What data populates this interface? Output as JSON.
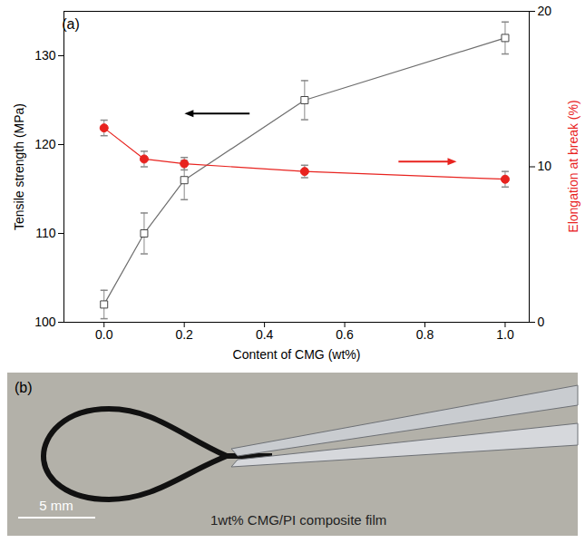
{
  "chart_data": {
    "type": "line",
    "panel_label": "(a)",
    "x_label": "Content of CMG (wt%)",
    "y_label": "Tensile strength (MPa)",
    "y2_label": "Elongation at break (%)",
    "x": [
      0,
      0.1,
      0.2,
      0.5,
      1.0
    ],
    "xlim": [
      -0.1,
      1.06
    ],
    "xticks": [
      {
        "value": 0,
        "label": "0.0"
      },
      {
        "value": 0.2,
        "label": "0.2"
      },
      {
        "value": 0.4,
        "label": "0.4"
      },
      {
        "value": 0.6,
        "label": "0.6"
      },
      {
        "value": 0.8,
        "label": "0.8"
      },
      {
        "value": 1,
        "label": "1.0"
      }
    ],
    "ylim": [
      100,
      135
    ],
    "yticks": [
      100,
      110,
      120,
      130
    ],
    "y2lim": [
      0,
      20
    ],
    "y2ticks": [
      0,
      10,
      20
    ],
    "grid": false,
    "series": [
      {
        "color": "#6e6e6e",
        "marker": "square-open",
        "axis": "y",
        "values": [
          102,
          110,
          116,
          125,
          132
        ],
        "errors": [
          1.6,
          2.3,
          2.2,
          2.2,
          1.8
        ]
      },
      {
        "color": "#e8231f",
        "marker": "circle",
        "axis": "y2",
        "values": [
          12.5,
          10.5,
          10.2,
          9.7,
          9.2
        ],
        "errors": [
          0.5,
          0.5,
          0.4,
          0.4,
          0.5
        ]
      }
    ]
  },
  "panel_b": {
    "panel_label": "(b)",
    "scale_bar": "5 mm",
    "caption": "1wt% CMG/PI composite film"
  }
}
